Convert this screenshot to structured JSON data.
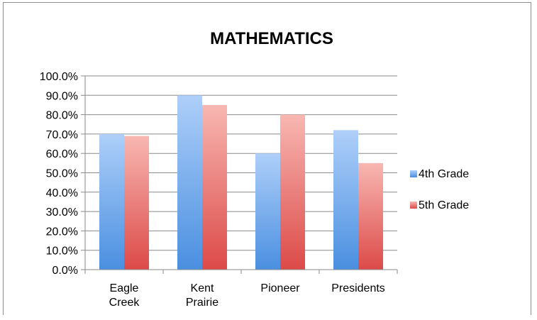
{
  "chart_data": {
    "type": "bar",
    "title": "MATHEMATICS",
    "categories": [
      [
        "Eagle",
        "Creek"
      ],
      [
        "Kent",
        "Prairie"
      ],
      [
        "Pioneer"
      ],
      [
        "Presidents"
      ]
    ],
    "series": [
      {
        "name": "4th Grade",
        "values": [
          70.0,
          90.0,
          60.0,
          72.0
        ],
        "color": "#6fa7e6"
      },
      {
        "name": "5th Grade",
        "values": [
          69.0,
          85.0,
          80.0,
          55.0
        ],
        "color": "#e77474"
      }
    ],
    "ylim": [
      0,
      100
    ],
    "yticks": [
      "0.0%",
      "10.0%",
      "20.0%",
      "30.0%",
      "40.0%",
      "50.0%",
      "60.0%",
      "70.0%",
      "80.0%",
      "90.0%",
      "100.0%"
    ],
    "grid": true,
    "legend_position": "right"
  }
}
